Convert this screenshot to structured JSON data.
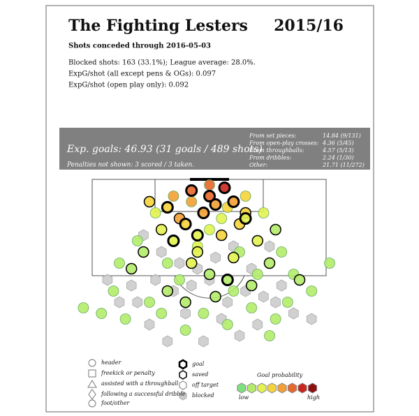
{
  "chart_data": {
    "type": "scatter",
    "title": "The Fighting Lesters",
    "season": "2015/16",
    "subtitle": "Shots conceded through 2016-05-03",
    "stats": [
      "Blocked shots: 163 (33.1%); League average: 28.0%.",
      "ExpG/shot (all except pens & OGs): 0.097",
      "ExpG/shot (open play only): 0.092"
    ],
    "banner_title": "Exp. goals: 46.93 (31 goals / 489 shots)",
    "banner_note": "Penalties not shown: 3 scored / 3 taken.",
    "breakdown": [
      [
        "From set pieces:",
        "14.84 (9/131)"
      ],
      [
        "From open-play crosses:",
        "4.36 (5/45)"
      ],
      [
        "From throughballs:",
        "4.57 (5/13)"
      ],
      [
        "From dribbles:",
        "2.24 (1/30)"
      ],
      [
        "Other:",
        "21.71 (11/272)"
      ]
    ],
    "shape_legend": [
      "header",
      "freekick or penalty",
      "assisted with a throughball",
      "following a successful dribble",
      "foot/other"
    ],
    "prob_title": "Goal probability",
    "prob_low": "low",
    "prob_high": "high",
    "prob_colors": [
      "#7fe07f",
      "#b4ec6a",
      "#e3f24f",
      "#f5d33a",
      "#f2a033",
      "#e8672a",
      "#c9261f",
      "#8e0f12"
    ],
    "xlim": [
      0,
      100
    ],
    "ylim": [
      0,
      60
    ],
    "series": [
      {
        "name": "goal",
        "x": [
          44,
          50,
          55,
          36,
          48,
          58,
          42,
          52,
          62,
          46,
          38,
          56
        ],
        "values": [
          4,
          6,
          3,
          10,
          12,
          8,
          16,
          9,
          14,
          20,
          22,
          36
        ],
        "prob": [
          0.5,
          0.4,
          0.6,
          0.2,
          0.25,
          0.3,
          0.15,
          0.35,
          0.12,
          0.1,
          0.08,
          0.04
        ]
      },
      {
        "name": "saved",
        "x": [
          30,
          34,
          40,
          46,
          54,
          60,
          66,
          72,
          28,
          44,
          50,
          58,
          64,
          70,
          36,
          42,
          52,
          80,
          24,
          62
        ],
        "values": [
          8,
          18,
          14,
          26,
          20,
          16,
          22,
          18,
          26,
          30,
          34,
          28,
          38,
          30,
          40,
          44,
          42,
          36,
          32,
          12
        ],
        "prob": [
          0.2,
          0.12,
          0.25,
          0.1,
          0.15,
          0.18,
          0.08,
          0.06,
          0.05,
          0.07,
          0.05,
          0.08,
          0.03,
          0.04,
          0.03,
          0.03,
          0.04,
          0.02,
          0.03,
          0.22
        ]
      },
      {
        "name": "off target",
        "x": [
          20,
          26,
          32,
          38,
          44,
          50,
          56,
          62,
          68,
          74,
          78,
          84,
          30,
          40,
          48,
          56,
          64,
          72,
          18,
          36,
          46,
          54,
          60,
          66,
          76,
          22,
          42,
          58,
          70,
          34,
          8,
          14,
          90,
          50
        ],
        "values": [
          30,
          22,
          12,
          6,
          8,
          2,
          10,
          6,
          12,
          26,
          34,
          40,
          44,
          36,
          48,
          52,
          46,
          50,
          40,
          30,
          24,
          14,
          26,
          34,
          44,
          50,
          54,
          40,
          56,
          48,
          46,
          48,
          30,
          18
        ],
        "prob": [
          0.03,
          0.05,
          0.14,
          0.28,
          0.3,
          0.45,
          0.2,
          0.22,
          0.1,
          0.05,
          0.03,
          0.02,
          0.02,
          0.04,
          0.02,
          0.02,
          0.02,
          0.02,
          0.02,
          0.05,
          0.08,
          0.12,
          0.06,
          0.04,
          0.02,
          0.02,
          0.02,
          0.03,
          0.02,
          0.02,
          0.02,
          0.02,
          0.02,
          0.1
        ]
      },
      {
        "name": "blocked",
        "color": "#cccccc",
        "x": [
          28,
          34,
          40,
          46,
          52,
          58,
          64,
          70,
          24,
          32,
          38,
          44,
          50,
          56,
          62,
          68,
          74,
          20,
          30,
          42,
          54,
          66,
          78,
          84,
          16,
          48,
          60,
          36,
          72,
          26
        ],
        "values": [
          20,
          26,
          30,
          32,
          28,
          24,
          32,
          24,
          38,
          36,
          40,
          38,
          36,
          44,
          40,
          42,
          38,
          44,
          52,
          48,
          50,
          52,
          48,
          50,
          36,
          58,
          56,
          58,
          44,
          44
        ]
      }
    ]
  }
}
